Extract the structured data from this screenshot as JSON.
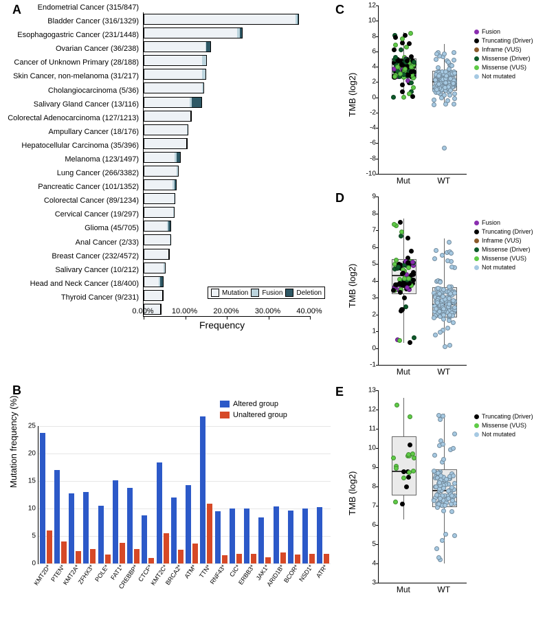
{
  "letters": {
    "A": "A",
    "B": "B",
    "C": "C",
    "D": "D",
    "E": "E"
  },
  "panelA": {
    "x_title": "Frequency",
    "x_max": 40.0,
    "x_ticks": [
      "0.00%",
      "10.00%",
      "20.00%",
      "30.00%",
      "40.00%"
    ],
    "legend": {
      "mutation": "Mutation",
      "fusion": "Fusion",
      "deletion": "Deletion"
    },
    "colors": {
      "mutation": "#eef2f6",
      "fusion": "#bcd4dd",
      "deletion": "#2e5865",
      "border": "#000000"
    },
    "rows": [
      {
        "label": "Endometrial Cancer (315/847)",
        "mut": 36.5,
        "fus": 0.6,
        "del": 0.1
      },
      {
        "label": "Bladder Cancer (316/1329)",
        "mut": 22.5,
        "fus": 0.7,
        "del": 0.5
      },
      {
        "label": "Esophagogastric Cancer (231/1448)",
        "mut": 14.8,
        "fus": 0.2,
        "del": 1.1
      },
      {
        "label": "Ovarian Cancer (36/238)",
        "mut": 14.0,
        "fus": 1.0,
        "del": 0.1
      },
      {
        "label": "Cancer of Unknown Primary (28/188)",
        "mut": 14.0,
        "fus": 0.9,
        "del": 0.0
      },
      {
        "label": "Skin Cancer, non-melanoma (31/217)",
        "mut": 14.0,
        "fus": 0.3,
        "del": 0.0
      },
      {
        "label": "Cholangiocarcinoma (5/36)",
        "mut": 11.0,
        "fus": 0.5,
        "del": 2.4
      },
      {
        "label": "Salivary Gland Cancer (13/116)",
        "mut": 11.2,
        "fus": 0.0,
        "del": 0.0
      },
      {
        "label": "Colorectal Adenocarcinoma (127/1213)",
        "mut": 10.4,
        "fus": 0.1,
        "del": 0.0
      },
      {
        "label": "Ampullary Cancer (18/176)",
        "mut": 10.2,
        "fus": 0.0,
        "del": 0.0
      },
      {
        "label": "Hepatocellular Carcinoma (35/396)",
        "mut": 7.5,
        "fus": 0.5,
        "del": 0.8
      },
      {
        "label": "Melanoma (123/1497)",
        "mut": 7.9,
        "fus": 0.3,
        "del": 0.0
      },
      {
        "label": "Lung Cancer (266/3382)",
        "mut": 7.0,
        "fus": 0.5,
        "del": 0.3
      },
      {
        "label": "Pancreatic Cancer (101/1352)",
        "mut": 7.3,
        "fus": 0.2,
        "del": 0.0
      },
      {
        "label": "Colorectal Cancer (89/1234)",
        "mut": 7.1,
        "fus": 0.1,
        "del": 0.0
      },
      {
        "label": "Cervical Cancer (19/297)",
        "mut": 5.6,
        "fus": 0.4,
        "del": 0.5
      },
      {
        "label": "Glioma (45/705)",
        "mut": 6.2,
        "fus": 0.2,
        "del": 0.0
      },
      {
        "label": "Anal Cancer (2/33)",
        "mut": 6.0,
        "fus": 0.0,
        "del": 0.0
      },
      {
        "label": "Breast Cancer (232/4572)",
        "mut": 4.8,
        "fus": 0.3,
        "del": 0.0
      },
      {
        "label": "Salivary Cancer (10/212)",
        "mut": 3.6,
        "fus": 0.3,
        "del": 0.8
      },
      {
        "label": "Head and Neck Cancer (18/400)",
        "mut": 4.4,
        "fus": 0.1,
        "del": 0.0
      },
      {
        "label": "Thyroid Cancer (9/231)",
        "mut": 3.9,
        "fus": 0.0,
        "del": 0.0
      }
    ]
  },
  "panelB": {
    "y_title": "Mutation frequency (%)",
    "y_max": 25,
    "y_ticks": [
      0,
      5,
      10,
      15,
      20,
      25
    ],
    "legend": {
      "altered": "Altered group",
      "unaltered": "Unaltered group"
    },
    "colors": {
      "altered": "#2c59c8",
      "unaltered": "#d64927",
      "grid": "#e6e6e6"
    },
    "genes": [
      {
        "name": "KMT2D*",
        "alt": 23.8,
        "un": 6.0
      },
      {
        "name": "PTEN*",
        "alt": 17.0,
        "un": 4.0
      },
      {
        "name": "KMT2A*",
        "alt": 12.7,
        "un": 2.3
      },
      {
        "name": "ZFHX3*",
        "alt": 13.0,
        "un": 2.6
      },
      {
        "name": "POLE*",
        "alt": 10.5,
        "un": 1.6
      },
      {
        "name": "FAT1*",
        "alt": 15.1,
        "un": 3.7
      },
      {
        "name": "CREBBP*",
        "alt": 13.7,
        "un": 2.6
      },
      {
        "name": "CTCF*",
        "alt": 8.8,
        "un": 1.0
      },
      {
        "name": "KMT2C*",
        "alt": 18.4,
        "un": 5.5
      },
      {
        "name": "BRCA2*",
        "alt": 12.0,
        "un": 2.5
      },
      {
        "name": "ATM*",
        "alt": 14.2,
        "un": 3.6
      },
      {
        "name": "TTN*",
        "alt": 26.7,
        "un": 10.9
      },
      {
        "name": "RNF43*",
        "alt": 9.5,
        "un": 1.5
      },
      {
        "name": "CIC*",
        "alt": 10.0,
        "un": 1.8
      },
      {
        "name": "ERBB3*",
        "alt": 10.0,
        "un": 1.7
      },
      {
        "name": "JAK1*",
        "alt": 8.4,
        "un": 1.1
      },
      {
        "name": "ARID1B*",
        "alt": 10.4,
        "un": 2.0
      },
      {
        "name": "BCOR*",
        "alt": 9.6,
        "un": 1.6
      },
      {
        "name": "NSD1*",
        "alt": 10.0,
        "un": 1.8
      },
      {
        "name": "ATR*",
        "alt": 10.3,
        "un": 1.8
      }
    ]
  },
  "stripCommon": {
    "y_title": "TMB (log2)",
    "x_labels": {
      "mut": "Mut",
      "wt": "WT"
    },
    "legend_items": {
      "fusion": {
        "label": "Fusion",
        "color": "#8a2db0"
      },
      "truncating": {
        "label": "Truncating (Driver)",
        "color": "#000000"
      },
      "inframe": {
        "label": "Inframe (VUS)",
        "color": "#8a5a2b"
      },
      "mis_driver": {
        "label": "Missense (Driver)",
        "color": "#0d5a2a"
      },
      "mis_vus": {
        "label": "Missense (VUS)",
        "color": "#5fcb47"
      },
      "notmut": {
        "label": "Not mutated",
        "color": "#a6c9e2"
      }
    }
  },
  "panelC": {
    "ylim": [
      -10,
      12
    ],
    "ytick_step": 2,
    "mut_box": {
      "q1": 2.7,
      "med": 3.8,
      "q3": 5.1,
      "lo": 0.0,
      "hi": 8.5
    },
    "wt_box": {
      "q1": 1.0,
      "med": 2.0,
      "q3": 3.5,
      "lo": -1.0,
      "hi": 7.0
    },
    "mut_n": 140,
    "wt_n": 160,
    "wt_outlier": -6.5,
    "legend": [
      "fusion",
      "truncating",
      "inframe",
      "mis_driver",
      "mis_vus",
      "notmut"
    ]
  },
  "panelD": {
    "ylim": [
      -1,
      9
    ],
    "ytick_step": 1,
    "mut_box": {
      "q1": 3.3,
      "med": 4.3,
      "q3": 5.3,
      "lo": 0.3,
      "hi": 7.7
    },
    "wt_box": {
      "q1": 1.9,
      "med": 2.6,
      "q3": 3.6,
      "lo": 0.0,
      "hi": 6.5
    },
    "mut_n": 90,
    "wt_n": 120,
    "legend": [
      "fusion",
      "truncating",
      "inframe",
      "mis_driver",
      "mis_vus",
      "notmut"
    ]
  },
  "panelE": {
    "ylim": [
      3,
      13
    ],
    "ytick_step": 1,
    "mut_box": {
      "q1": 7.6,
      "med": 8.8,
      "q3": 10.6,
      "lo": 6.3,
      "hi": 12.6
    },
    "wt_box": {
      "q1": 7.0,
      "med": 7.8,
      "q3": 8.9,
      "lo": 4.0,
      "hi": 11.8
    },
    "mut_n": 20,
    "wt_n": 100,
    "legend": [
      "truncating",
      "mis_vus",
      "notmut"
    ]
  }
}
